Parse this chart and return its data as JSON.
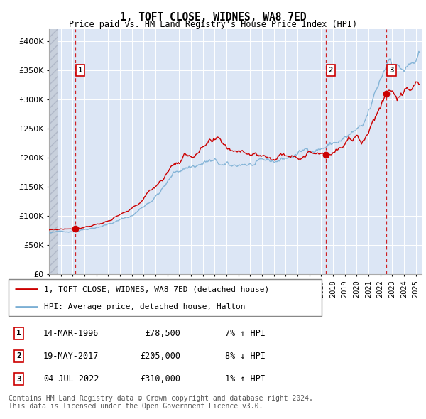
{
  "title": "1, TOFT CLOSE, WIDNES, WA8 7ED",
  "subtitle": "Price paid vs. HM Land Registry's House Price Index (HPI)",
  "legend_property": "1, TOFT CLOSE, WIDNES, WA8 7ED (detached house)",
  "legend_hpi": "HPI: Average price, detached house, Halton",
  "transactions": [
    {
      "num": 1,
      "date": "14-MAR-1996",
      "price": 78500,
      "pct": "7%",
      "dir": "↑",
      "year": 1996.21
    },
    {
      "num": 2,
      "date": "19-MAY-2017",
      "price": 205000,
      "pct": "8%",
      "dir": "↓",
      "year": 2017.38
    },
    {
      "num": 3,
      "date": "04-JUL-2022",
      "price": 310000,
      "pct": "1%",
      "dir": "↑",
      "year": 2022.5
    }
  ],
  "footer": "Contains HM Land Registry data © Crown copyright and database right 2024.\nThis data is licensed under the Open Government Licence v3.0.",
  "ylim": [
    0,
    420000
  ],
  "yticks": [
    0,
    50000,
    100000,
    150000,
    200000,
    250000,
    300000,
    350000,
    400000
  ],
  "xlim_start": 1994.0,
  "xlim_end": 2025.5,
  "property_color": "#cc0000",
  "hpi_color": "#7bafd4",
  "dashed_color": "#cc0000",
  "background_color": "#dce6f5",
  "hatch_color": "#c8d0dc",
  "grid_color": "#ffffff",
  "box_color": "#cc0000"
}
